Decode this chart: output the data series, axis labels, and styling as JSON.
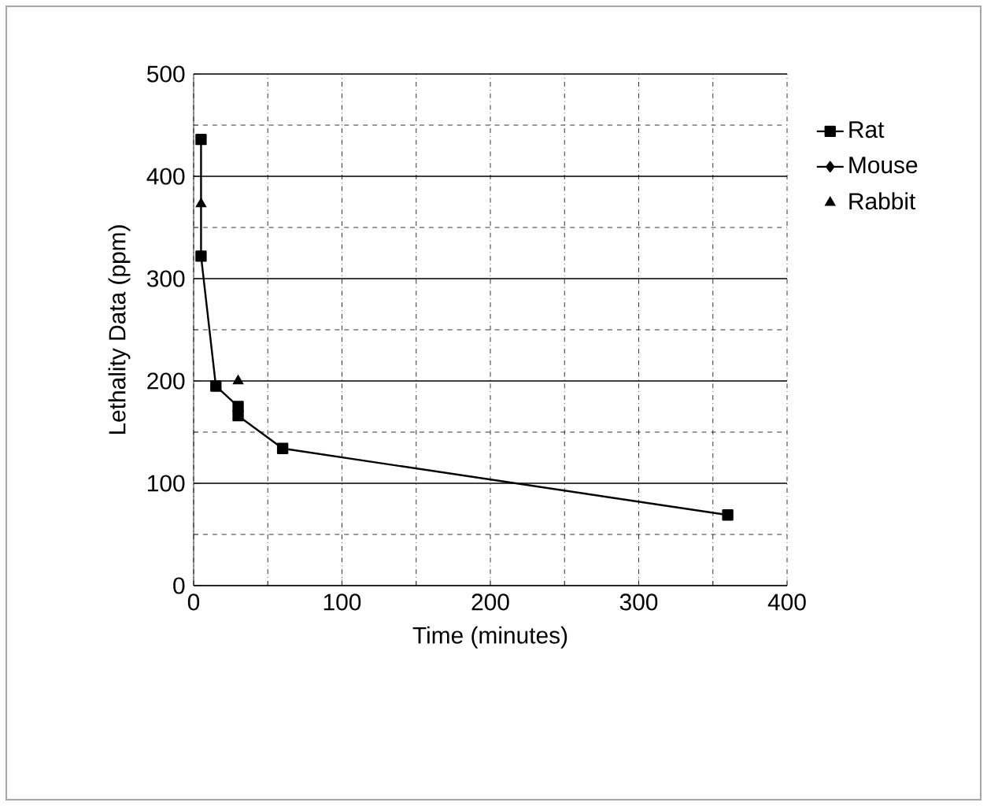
{
  "chart_data": {
    "type": "line",
    "xlabel": "Time (minutes)",
    "ylabel": "Lethality Data (ppm)",
    "xlim": [
      0,
      400
    ],
    "xticks": [
      0,
      100,
      200,
      300,
      400
    ],
    "ylim": [
      0,
      500
    ],
    "yticks": [
      0,
      100,
      200,
      300,
      400,
      500
    ],
    "grid": true,
    "legend": "right",
    "series": [
      {
        "name": "Rat",
        "color": "#000000",
        "marker": "square",
        "x": [
          5,
          5,
          15,
          30,
          30,
          60,
          360
        ],
        "values": [
          436,
          322,
          195,
          175,
          166,
          134,
          69
        ]
      },
      {
        "name": "Mouse",
        "color": "#000000",
        "marker": "diamond"
      },
      {
        "name": "Rabbit",
        "type": "scatter",
        "color": "#000000",
        "marker": "triangle",
        "x": [
          5,
          30
        ],
        "values": [
          373,
          200
        ]
      }
    ]
  }
}
